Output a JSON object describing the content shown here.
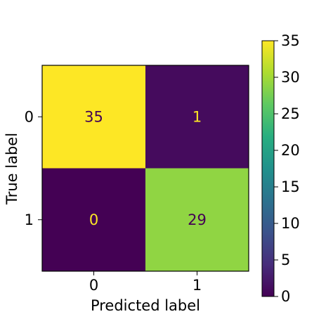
{
  "chart_data": {
    "type": "heatmap",
    "title": "",
    "xlabel": "Predicted label",
    "ylabel": "True label",
    "x_ticks": [
      "0",
      "1"
    ],
    "y_ticks": [
      "0",
      "1"
    ],
    "values": [
      [
        35,
        1
      ],
      [
        0,
        29
      ]
    ],
    "colormap": "viridis",
    "colorbar": {
      "range": [
        0,
        35
      ],
      "ticks": [
        "0",
        "5",
        "10",
        "15",
        "20",
        "25",
        "30",
        "35"
      ]
    },
    "cell_text_dark": "#440154",
    "cell_text_light": "#fde725"
  }
}
